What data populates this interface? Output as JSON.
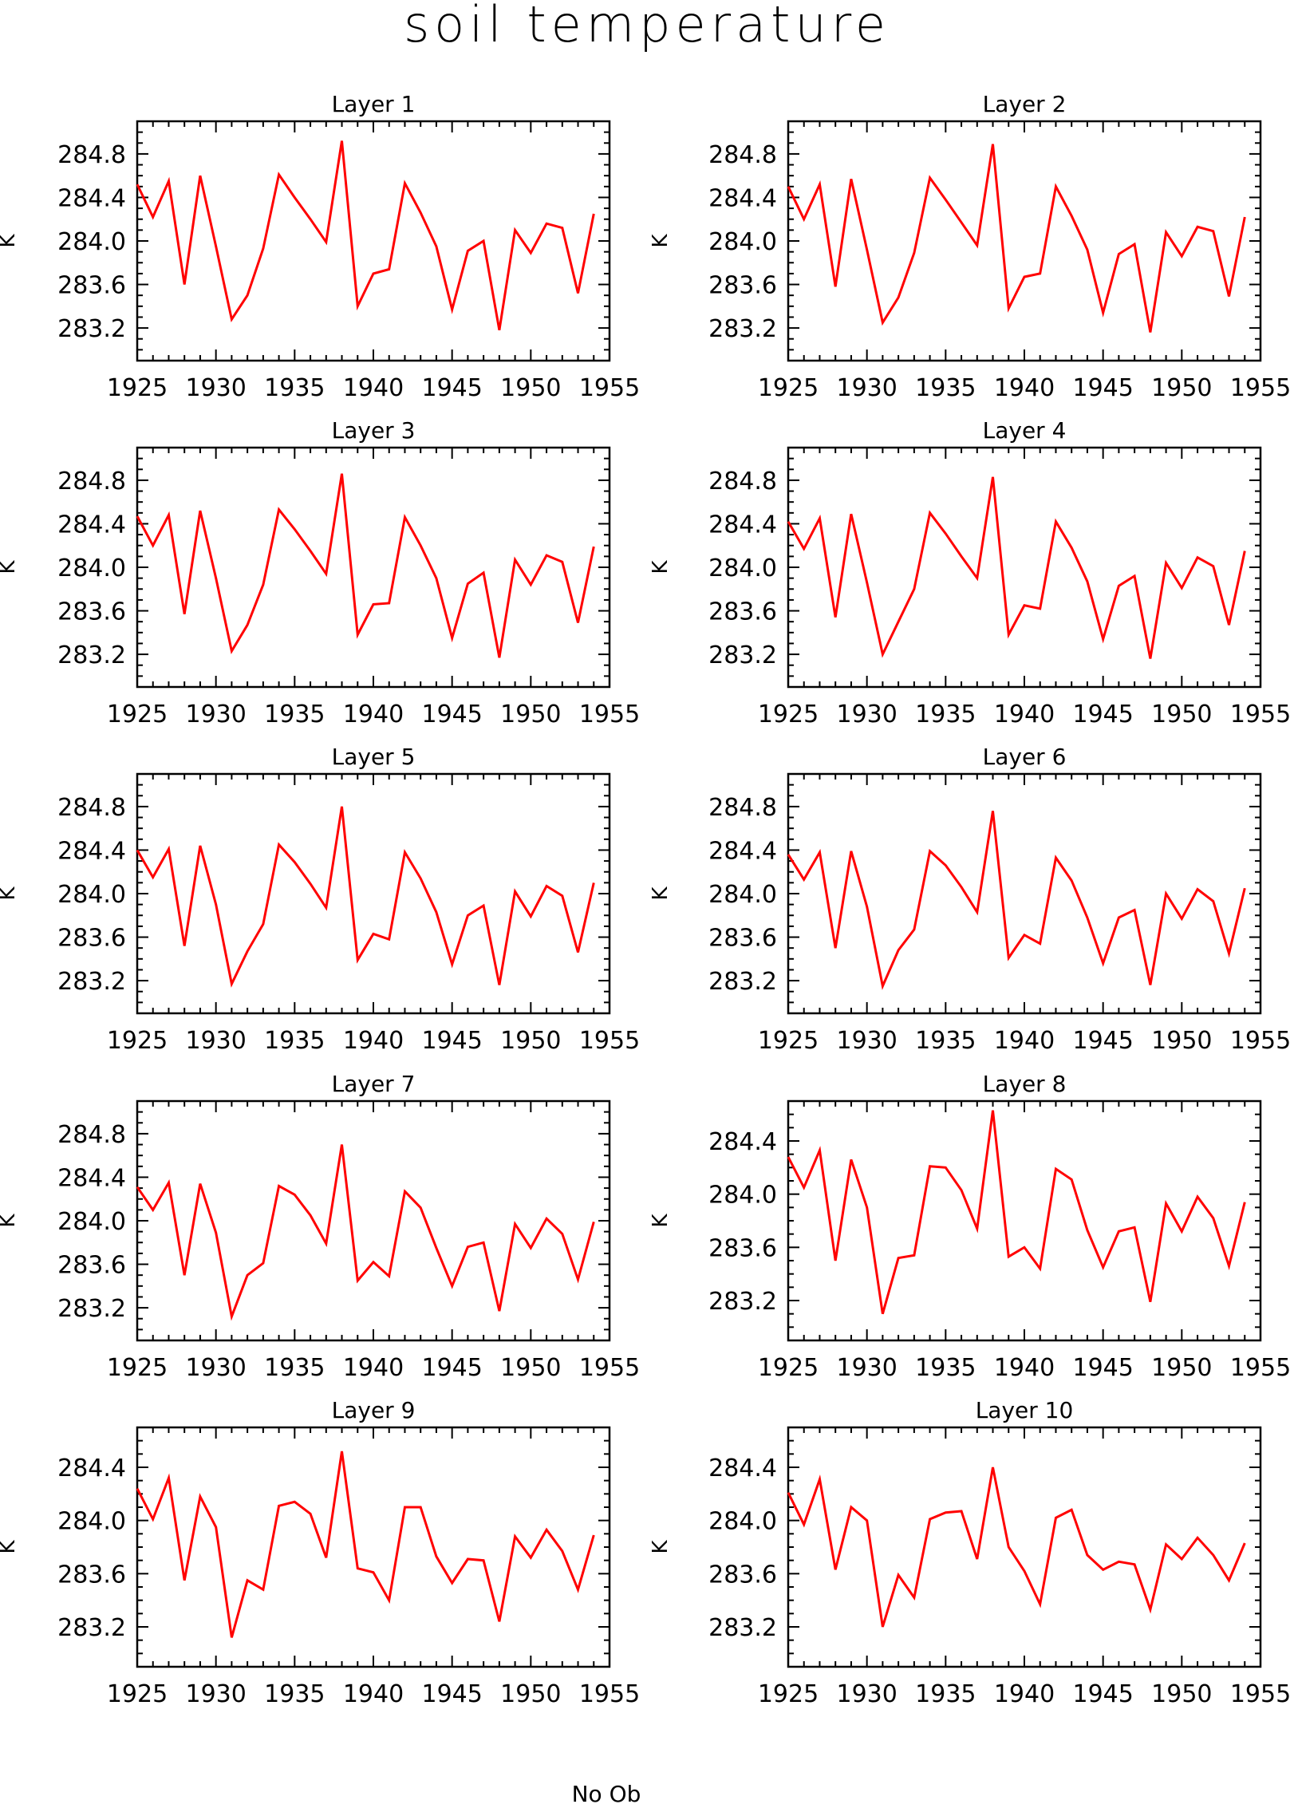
{
  "title": "soil temperature",
  "footer_label": "No Ob",
  "colors": {
    "series": "#ff0000",
    "axis": "#000000"
  },
  "chart_data": [
    {
      "type": "line",
      "title": "Layer 1",
      "ylabel": "K",
      "xlim": [
        1925,
        1955
      ],
      "ylim": [
        282.9,
        285.1
      ],
      "xticks": [
        "1925",
        "1930",
        "1935",
        "1940",
        "1945",
        "1950",
        "1955"
      ],
      "yticks": [
        "283.2",
        "283.6",
        "284.0",
        "284.4",
        "284.8"
      ],
      "x": [
        1925,
        1926,
        1927,
        1928,
        1929,
        1930,
        1931,
        1932,
        1933,
        1934,
        1935,
        1936,
        1937,
        1938,
        1939,
        1940,
        1941,
        1942,
        1943,
        1944,
        1945,
        1946,
        1947,
        1948,
        1949,
        1950,
        1951,
        1952,
        1953,
        1954
      ],
      "series": [
        {
          "values": [
            284.52,
            284.22,
            284.55,
            283.6,
            284.6,
            283.95,
            283.28,
            283.5,
            283.93,
            284.61,
            284.4,
            284.2,
            283.99,
            284.92,
            283.4,
            283.7,
            283.74,
            284.53,
            284.26,
            283.95,
            283.37,
            283.91,
            284.0,
            283.18,
            284.1,
            283.89,
            284.16,
            284.12,
            283.52,
            284.25
          ]
        }
      ],
      "grid": false
    },
    {
      "type": "line",
      "title": "Layer 2",
      "ylabel": "K",
      "xlim": [
        1925,
        1955
      ],
      "ylim": [
        282.9,
        285.1
      ],
      "xticks": [
        "1925",
        "1930",
        "1935",
        "1940",
        "1945",
        "1950",
        "1955"
      ],
      "yticks": [
        "283.2",
        "283.6",
        "284.0",
        "284.4",
        "284.8"
      ],
      "x": [
        1925,
        1926,
        1927,
        1928,
        1929,
        1930,
        1931,
        1932,
        1933,
        1934,
        1935,
        1936,
        1937,
        1938,
        1939,
        1940,
        1941,
        1942,
        1943,
        1944,
        1945,
        1946,
        1947,
        1948,
        1949,
        1950,
        1951,
        1952,
        1953,
        1954
      ],
      "series": [
        {
          "values": [
            284.5,
            284.2,
            284.52,
            283.58,
            284.57,
            283.92,
            283.25,
            283.48,
            283.89,
            284.58,
            284.38,
            284.17,
            283.96,
            284.89,
            283.38,
            283.67,
            283.7,
            284.5,
            284.23,
            283.92,
            283.34,
            283.88,
            283.97,
            283.16,
            284.08,
            283.86,
            284.13,
            284.09,
            283.49,
            284.22
          ]
        }
      ],
      "grid": false
    },
    {
      "type": "line",
      "title": "Layer 3",
      "ylabel": "K",
      "xlim": [
        1925,
        1955
      ],
      "ylim": [
        282.9,
        285.1
      ],
      "xticks": [
        "1925",
        "1930",
        "1935",
        "1940",
        "1945",
        "1950",
        "1955"
      ],
      "yticks": [
        "283.2",
        "283.6",
        "284.0",
        "284.4",
        "284.8"
      ],
      "x": [
        1925,
        1926,
        1927,
        1928,
        1929,
        1930,
        1931,
        1932,
        1933,
        1934,
        1935,
        1936,
        1937,
        1938,
        1939,
        1940,
        1941,
        1942,
        1943,
        1944,
        1945,
        1946,
        1947,
        1948,
        1949,
        1950,
        1951,
        1952,
        1953,
        1954
      ],
      "series": [
        {
          "values": [
            284.47,
            284.2,
            284.48,
            283.57,
            284.52,
            283.9,
            283.23,
            283.47,
            283.84,
            284.53,
            284.35,
            284.15,
            283.94,
            284.86,
            283.38,
            283.66,
            283.67,
            284.46,
            284.2,
            283.9,
            283.35,
            283.85,
            283.95,
            283.17,
            284.07,
            283.84,
            284.11,
            284.05,
            283.49,
            284.19
          ]
        }
      ],
      "grid": false
    },
    {
      "type": "line",
      "title": "Layer 4",
      "ylabel": "K",
      "xlim": [
        1925,
        1955
      ],
      "ylim": [
        282.9,
        285.1
      ],
      "xticks": [
        "1925",
        "1930",
        "1935",
        "1940",
        "1945",
        "1950",
        "1955"
      ],
      "yticks": [
        "283.2",
        "283.6",
        "284.0",
        "284.4",
        "284.8"
      ],
      "x": [
        1925,
        1926,
        1927,
        1928,
        1929,
        1930,
        1931,
        1932,
        1933,
        1934,
        1935,
        1936,
        1937,
        1938,
        1939,
        1940,
        1941,
        1942,
        1943,
        1944,
        1945,
        1946,
        1947,
        1948,
        1949,
        1950,
        1951,
        1952,
        1953,
        1954
      ],
      "series": [
        {
          "values": [
            284.42,
            284.17,
            284.45,
            283.54,
            284.49,
            283.86,
            283.2,
            283.5,
            283.8,
            284.5,
            284.31,
            284.1,
            283.9,
            284.83,
            283.38,
            283.65,
            283.62,
            284.42,
            284.18,
            283.87,
            283.34,
            283.83,
            283.92,
            283.16,
            284.04,
            283.81,
            284.09,
            284.01,
            283.47,
            284.15
          ]
        }
      ],
      "grid": false
    },
    {
      "type": "line",
      "title": "Layer 5",
      "ylabel": "K",
      "xlim": [
        1925,
        1955
      ],
      "ylim": [
        282.9,
        285.1
      ],
      "xticks": [
        "1925",
        "1930",
        "1935",
        "1940",
        "1945",
        "1950",
        "1955"
      ],
      "yticks": [
        "283.2",
        "283.6",
        "284.0",
        "284.4",
        "284.8"
      ],
      "x": [
        1925,
        1926,
        1927,
        1928,
        1929,
        1930,
        1931,
        1932,
        1933,
        1934,
        1935,
        1936,
        1937,
        1938,
        1939,
        1940,
        1941,
        1942,
        1943,
        1944,
        1945,
        1946,
        1947,
        1948,
        1949,
        1950,
        1951,
        1952,
        1953,
        1954
      ],
      "series": [
        {
          "values": [
            284.4,
            284.15,
            284.41,
            283.52,
            284.44,
            283.9,
            283.17,
            283.47,
            283.72,
            284.45,
            284.29,
            284.09,
            283.87,
            284.8,
            283.39,
            283.63,
            283.58,
            284.38,
            284.14,
            283.83,
            283.35,
            283.8,
            283.89,
            283.16,
            284.02,
            283.79,
            284.07,
            283.98,
            283.46,
            284.1
          ]
        }
      ],
      "grid": false
    },
    {
      "type": "line",
      "title": "Layer 6",
      "ylabel": "K",
      "xlim": [
        1925,
        1955
      ],
      "ylim": [
        282.9,
        285.1
      ],
      "xticks": [
        "1925",
        "1930",
        "1935",
        "1940",
        "1945",
        "1950",
        "1955"
      ],
      "yticks": [
        "283.2",
        "283.6",
        "284.0",
        "284.4",
        "284.8"
      ],
      "x": [
        1925,
        1926,
        1927,
        1928,
        1929,
        1930,
        1931,
        1932,
        1933,
        1934,
        1935,
        1936,
        1937,
        1938,
        1939,
        1940,
        1941,
        1942,
        1943,
        1944,
        1945,
        1946,
        1947,
        1948,
        1949,
        1950,
        1951,
        1952,
        1953,
        1954
      ],
      "series": [
        {
          "values": [
            284.36,
            284.13,
            284.38,
            283.5,
            284.39,
            283.88,
            283.15,
            283.48,
            283.67,
            284.39,
            284.26,
            284.06,
            283.83,
            284.76,
            283.41,
            283.62,
            283.54,
            284.33,
            284.12,
            283.78,
            283.36,
            283.78,
            283.85,
            283.16,
            284.0,
            283.77,
            284.04,
            283.93,
            283.45,
            284.05
          ]
        }
      ],
      "grid": false
    },
    {
      "type": "line",
      "title": "Layer 7",
      "ylabel": "K",
      "xlim": [
        1925,
        1955
      ],
      "ylim": [
        282.9,
        285.1
      ],
      "xticks": [
        "1925",
        "1930",
        "1935",
        "1940",
        "1945",
        "1950",
        "1955"
      ],
      "yticks": [
        "283.2",
        "283.6",
        "284.0",
        "284.4",
        "284.8"
      ],
      "x": [
        1925,
        1926,
        1927,
        1928,
        1929,
        1930,
        1931,
        1932,
        1933,
        1934,
        1935,
        1936,
        1937,
        1938,
        1939,
        1940,
        1941,
        1942,
        1943,
        1944,
        1945,
        1946,
        1947,
        1948,
        1949,
        1950,
        1951,
        1952,
        1953,
        1954
      ],
      "series": [
        {
          "values": [
            284.31,
            284.1,
            284.35,
            283.5,
            284.34,
            283.89,
            283.12,
            283.5,
            283.61,
            284.32,
            284.24,
            284.05,
            283.79,
            284.7,
            283.45,
            283.62,
            283.49,
            284.27,
            284.12,
            283.75,
            283.4,
            283.76,
            283.8,
            283.17,
            283.97,
            283.75,
            284.02,
            283.88,
            283.46,
            283.99
          ]
        }
      ],
      "grid": false
    },
    {
      "type": "line",
      "title": "Layer 8",
      "ylabel": "K",
      "xlim": [
        1925,
        1955
      ],
      "ylim": [
        282.9,
        284.7
      ],
      "xticks": [
        "1925",
        "1930",
        "1935",
        "1940",
        "1945",
        "1950",
        "1955"
      ],
      "yticks": [
        "283.2",
        "283.6",
        "284.0",
        "284.4"
      ],
      "x": [
        1925,
        1926,
        1927,
        1928,
        1929,
        1930,
        1931,
        1932,
        1933,
        1934,
        1935,
        1936,
        1937,
        1938,
        1939,
        1940,
        1941,
        1942,
        1943,
        1944,
        1945,
        1946,
        1947,
        1948,
        1949,
        1950,
        1951,
        1952,
        1953,
        1954
      ],
      "series": [
        {
          "values": [
            284.28,
            284.05,
            284.33,
            283.5,
            284.26,
            283.9,
            283.1,
            283.52,
            283.54,
            284.21,
            284.2,
            284.03,
            283.74,
            284.63,
            283.53,
            283.6,
            283.44,
            284.19,
            284.11,
            283.73,
            283.45,
            283.72,
            283.75,
            283.19,
            283.93,
            283.72,
            283.98,
            283.82,
            283.46,
            283.94
          ]
        }
      ],
      "grid": false
    },
    {
      "type": "line",
      "title": "Layer 9",
      "ylabel": "K",
      "xlim": [
        1925,
        1955
      ],
      "ylim": [
        282.9,
        284.7
      ],
      "xticks": [
        "1925",
        "1930",
        "1935",
        "1940",
        "1945",
        "1950",
        "1955"
      ],
      "yticks": [
        "283.2",
        "283.6",
        "284.0",
        "284.4"
      ],
      "x": [
        1925,
        1926,
        1927,
        1928,
        1929,
        1930,
        1931,
        1932,
        1933,
        1934,
        1935,
        1936,
        1937,
        1938,
        1939,
        1940,
        1941,
        1942,
        1943,
        1944,
        1945,
        1946,
        1947,
        1948,
        1949,
        1950,
        1951,
        1952,
        1953,
        1954
      ],
      "series": [
        {
          "values": [
            284.24,
            284.01,
            284.32,
            283.55,
            284.18,
            283.95,
            283.12,
            283.55,
            283.48,
            284.11,
            284.14,
            284.05,
            283.72,
            284.52,
            283.64,
            283.61,
            283.4,
            284.1,
            284.1,
            283.73,
            283.53,
            283.71,
            283.7,
            283.24,
            283.88,
            283.72,
            283.93,
            283.77,
            283.48,
            283.89
          ]
        }
      ],
      "grid": false
    },
    {
      "type": "line",
      "title": "Layer 10",
      "ylabel": "K",
      "xlim": [
        1925,
        1955
      ],
      "ylim": [
        282.9,
        284.7
      ],
      "xticks": [
        "1925",
        "1930",
        "1935",
        "1940",
        "1945",
        "1950",
        "1955"
      ],
      "yticks": [
        "283.2",
        "283.6",
        "284.0",
        "284.4"
      ],
      "x": [
        1925,
        1926,
        1927,
        1928,
        1929,
        1930,
        1931,
        1932,
        1933,
        1934,
        1935,
        1936,
        1937,
        1938,
        1939,
        1940,
        1941,
        1942,
        1943,
        1944,
        1945,
        1946,
        1947,
        1948,
        1949,
        1950,
        1951,
        1952,
        1953,
        1954
      ],
      "series": [
        {
          "values": [
            284.21,
            283.97,
            284.31,
            283.63,
            284.1,
            284.0,
            283.2,
            283.59,
            283.42,
            284.01,
            284.06,
            284.07,
            283.71,
            284.4,
            283.8,
            283.62,
            283.37,
            284.02,
            284.08,
            283.74,
            283.63,
            283.69,
            283.67,
            283.33,
            283.82,
            283.71,
            283.87,
            283.74,
            283.55,
            283.83
          ]
        }
      ],
      "grid": false
    }
  ]
}
